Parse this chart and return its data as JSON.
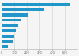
{
  "values": [
    541,
    340,
    210,
    155,
    130,
    115,
    100,
    85,
    50
  ],
  "bar_color": "#2196c8",
  "background_color": "#f5f5f5",
  "plot_bg": "#f5f5f5",
  "xlim": [
    0,
    600
  ],
  "bar_height": 0.55,
  "grid_color": "#cccccc",
  "xtick_values": [
    0,
    100,
    200,
    300,
    400,
    500
  ],
  "xtick_fontsize": 2.5,
  "figsize": [
    1.0,
    0.71
  ],
  "dpi": 100
}
